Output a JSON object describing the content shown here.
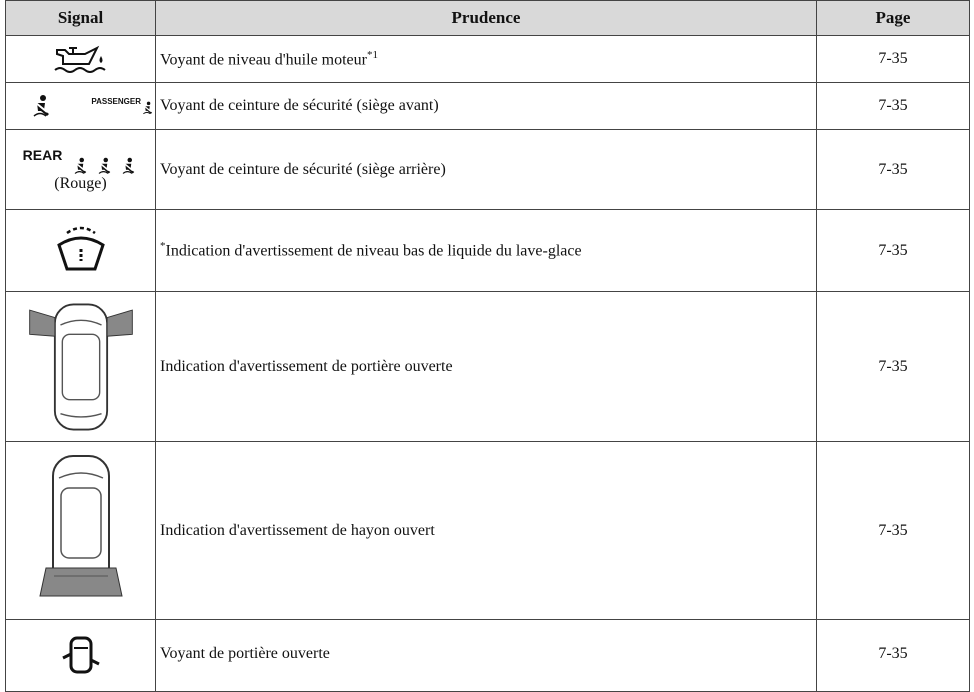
{
  "table": {
    "headers": [
      "Signal",
      "Prudence",
      "Page"
    ],
    "rows": [
      {
        "prudence": "Voyant de niveau d'huile moteur",
        "note": "*1",
        "page": "7-35"
      },
      {
        "signal_label": "PASSENGER",
        "prudence": "Voyant de ceinture de sécurité (siège avant)",
        "page": "7-35"
      },
      {
        "signal_label": "REAR",
        "signal_caption": "(Rouge)",
        "prudence": "Voyant de ceinture de sécurité (siège arrière)",
        "page": "7-35"
      },
      {
        "note": "*",
        "prudence": "Indication d'avertissement de niveau bas de liquide du lave-glace",
        "page": "7-35"
      },
      {
        "prudence": "Indication d'avertissement de portière ouverte",
        "page": "7-35"
      },
      {
        "prudence": "Indication d'avertissement de hayon ouvert",
        "page": "7-35"
      },
      {
        "prudence": "Voyant de portière ouverte",
        "page": "7-35"
      }
    ]
  }
}
